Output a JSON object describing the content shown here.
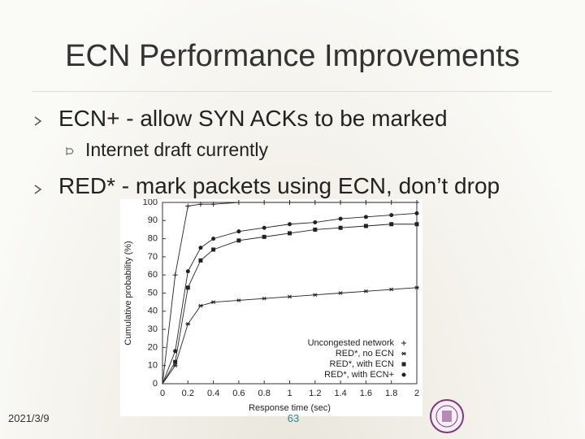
{
  "title": "ECN Performance Improvements",
  "bullets": [
    {
      "text": "ECN+ - allow SYN ACKs to be marked",
      "sub": [
        "Internet draft currently"
      ]
    },
    {
      "text": "RED* - mark packets using ECN, don’t drop"
    }
  ],
  "footer": {
    "date": "2021/3/9",
    "page": "63"
  },
  "chart_data": {
    "type": "line",
    "xlabel": "Response time (sec)",
    "ylabel": "Cumulative probability (%)",
    "x": [
      0,
      0.1,
      0.2,
      0.3,
      0.4,
      0.6,
      0.8,
      1.0,
      1.2,
      1.4,
      1.6,
      1.8,
      2.0
    ],
    "series": [
      {
        "name": "Uncongested network",
        "color": "#222222",
        "marker": "plus",
        "values": [
          0,
          60,
          98,
          99,
          99,
          100,
          100,
          100,
          100,
          100,
          100,
          100,
          100
        ]
      },
      {
        "name": "RED*, no ECN",
        "color": "#222222",
        "marker": "star",
        "values": [
          0,
          10,
          33,
          43,
          45,
          46,
          47,
          48,
          49,
          50,
          51,
          52,
          53
        ]
      },
      {
        "name": "RED*, with ECN",
        "color": "#222222",
        "marker": "square",
        "values": [
          0,
          12,
          53,
          68,
          74,
          79,
          81,
          83,
          85,
          86,
          87,
          88,
          88
        ]
      },
      {
        "name": "RED*, with ECN+",
        "color": "#222222",
        "marker": "dot",
        "values": [
          0,
          18,
          62,
          75,
          80,
          84,
          86,
          88,
          89,
          91,
          92,
          93,
          94
        ]
      }
    ],
    "xlim": [
      0,
      2
    ],
    "xticks": [
      0,
      0.2,
      0.4,
      0.6,
      0.8,
      1,
      1.2,
      1.4,
      1.6,
      1.8,
      2
    ],
    "ylim": [
      0,
      100
    ],
    "yticks": [
      0,
      10,
      20,
      30,
      40,
      50,
      60,
      70,
      80,
      90,
      100
    ],
    "grid": false,
    "legend": "lower right"
  }
}
